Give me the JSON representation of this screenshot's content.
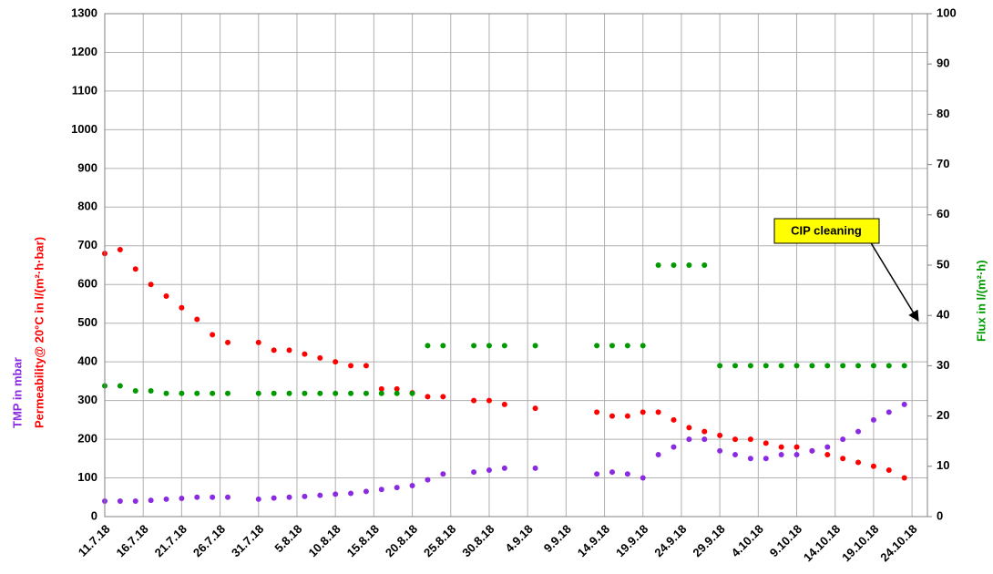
{
  "chart_data": {
    "type": "scatter",
    "y_label": "TMP in mbar",
    "y_label_2": "Permeability@ 20°C in l/(m²·h·bar)",
    "y2_label": "Flux in l/(m²·h)",
    "annotation": "CIP cleaning",
    "x": [
      "2018-07-11",
      "2018-07-13",
      "2018-07-15",
      "2018-07-17",
      "2018-07-19",
      "2018-07-21",
      "2018-07-23",
      "2018-07-25",
      "2018-07-27",
      "2018-07-29",
      "2018-07-31",
      "2018-08-02",
      "2018-08-04",
      "2018-08-06",
      "2018-08-08",
      "2018-08-10",
      "2018-08-12",
      "2018-08-14",
      "2018-08-16",
      "2018-08-18",
      "2018-08-20",
      "2018-08-22",
      "2018-08-24",
      "2018-08-26",
      "2018-08-28",
      "2018-08-30",
      "2018-09-01",
      "2018-09-03",
      "2018-09-05",
      "2018-09-07",
      "2018-09-09",
      "2018-09-11",
      "2018-09-13",
      "2018-09-15",
      "2018-09-17",
      "2018-09-19",
      "2018-09-21",
      "2018-09-23",
      "2018-09-25",
      "2018-09-27",
      "2018-09-29",
      "2018-10-01",
      "2018-10-03",
      "2018-10-05",
      "2018-10-07",
      "2018-10-09",
      "2018-10-11",
      "2018-10-13",
      "2018-10-15",
      "2018-10-17",
      "2018-10-19",
      "2018-10-21",
      "2018-10-23"
    ],
    "series": [
      {
        "name": "Permeability",
        "color": "#ff0000",
        "values": [
          680,
          690,
          640,
          600,
          570,
          540,
          510,
          470,
          450,
          null,
          450,
          430,
          430,
          420,
          410,
          400,
          390,
          390,
          330,
          330,
          320,
          310,
          310,
          null,
          300,
          300,
          290,
          null,
          280,
          null,
          null,
          null,
          270,
          260,
          260,
          270,
          270,
          250,
          230,
          220,
          210,
          200,
          200,
          190,
          180,
          180,
          170,
          160,
          150,
          140,
          130,
          120,
          100
        ]
      },
      {
        "name": "TMP",
        "color": "#8a2be2",
        "values": [
          40,
          40,
          40,
          42,
          45,
          47,
          50,
          50,
          50,
          null,
          45,
          48,
          50,
          52,
          55,
          58,
          60,
          65,
          70,
          75,
          80,
          95,
          110,
          null,
          115,
          120,
          125,
          null,
          125,
          null,
          null,
          null,
          110,
          115,
          110,
          100,
          160,
          180,
          200,
          200,
          170,
          160,
          150,
          150,
          160,
          160,
          170,
          180,
          200,
          220,
          250,
          270,
          290
        ]
      },
      {
        "name": "Flux",
        "color": "#009900",
        "axis": "y2",
        "values": [
          26,
          26,
          25,
          25,
          24.5,
          24.5,
          24.5,
          24.5,
          24.5,
          null,
          24.5,
          24.5,
          24.5,
          24.5,
          24.5,
          24.5,
          24.5,
          24.5,
          24.5,
          24.5,
          24.5,
          34,
          34,
          null,
          34,
          34,
          34,
          null,
          34,
          null,
          null,
          null,
          34,
          34,
          34,
          34,
          50,
          50,
          50,
          50,
          30,
          30,
          30,
          30,
          30,
          30,
          30,
          30,
          30,
          30,
          30,
          30,
          30
        ]
      }
    ],
    "xlim": [
      "2018-07-11",
      "2018-10-26"
    ],
    "xticks": [
      {
        "value": "2018-07-11",
        "label": "11.7.18"
      },
      {
        "value": "2018-07-16",
        "label": "16.7.18"
      },
      {
        "value": "2018-07-21",
        "label": "21.7.18"
      },
      {
        "value": "2018-07-26",
        "label": "26.7.18"
      },
      {
        "value": "2018-07-31",
        "label": "31.7.18"
      },
      {
        "value": "2018-08-05",
        "label": "5.8.18"
      },
      {
        "value": "2018-08-10",
        "label": "10.8.18"
      },
      {
        "value": "2018-08-15",
        "label": "15.8.18"
      },
      {
        "value": "2018-08-20",
        "label": "20.8.18"
      },
      {
        "value": "2018-08-25",
        "label": "25.8.18"
      },
      {
        "value": "2018-08-30",
        "label": "30.8.18"
      },
      {
        "value": "2018-09-04",
        "label": "4.9.18"
      },
      {
        "value": "2018-09-09",
        "label": "9.9.18"
      },
      {
        "value": "2018-09-14",
        "label": "14.9.18"
      },
      {
        "value": "2018-09-19",
        "label": "19.9.18"
      },
      {
        "value": "2018-09-24",
        "label": "24.9.18"
      },
      {
        "value": "2018-09-29",
        "label": "29.9.18"
      },
      {
        "value": "2018-10-04",
        "label": "4.10.18"
      },
      {
        "value": "2018-10-09",
        "label": "9.10.18"
      },
      {
        "value": "2018-10-14",
        "label": "14.10.18"
      },
      {
        "value": "2018-10-19",
        "label": "19.10.18"
      },
      {
        "value": "2018-10-24",
        "label": "24.10.18"
      }
    ],
    "ylim": [
      0,
      1300
    ],
    "yticks": [
      0,
      100,
      200,
      300,
      400,
      500,
      600,
      700,
      800,
      900,
      1000,
      1100,
      1200,
      1300
    ],
    "y2lim": [
      0,
      100
    ],
    "y2ticks": [
      0,
      10,
      20,
      30,
      40,
      50,
      60,
      70,
      80,
      90,
      100
    ],
    "grid": true
  }
}
